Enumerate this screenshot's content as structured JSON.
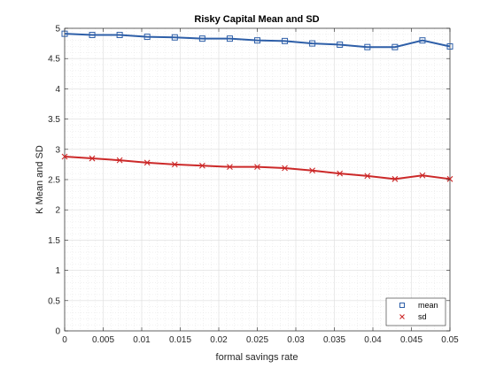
{
  "chart_data": {
    "type": "line",
    "title": "Risky Capital Mean and SD",
    "xlabel": "formal savings rate",
    "ylabel": "K Mean and SD",
    "xlim": [
      0,
      0.05
    ],
    "ylim": [
      0,
      5
    ],
    "xticks": [
      0,
      0.005,
      0.01,
      0.015,
      0.02,
      0.025,
      0.03,
      0.035,
      0.04,
      0.045,
      0.05
    ],
    "xtick_labels": [
      "0",
      "0.005",
      "0.01",
      "0.015",
      "0.02",
      "0.025",
      "0.03",
      "0.035",
      "0.04",
      "0.045",
      "0.05"
    ],
    "yticks": [
      0,
      0.5,
      1,
      1.5,
      2,
      2.5,
      3,
      3.5,
      4,
      4.5,
      5
    ],
    "ytick_labels": [
      "0",
      "0.5",
      "1",
      "1.5",
      "2",
      "2.5",
      "3",
      "3.5",
      "4",
      "4.5",
      "5"
    ],
    "grid": true,
    "minor_grid": true,
    "legend_position": "bottom-right",
    "x": [
      0,
      0.00357,
      0.00714,
      0.01071,
      0.01429,
      0.01786,
      0.02143,
      0.025,
      0.02857,
      0.03214,
      0.03571,
      0.03929,
      0.04286,
      0.04643,
      0.05
    ],
    "series": [
      {
        "name": "mean",
        "color": "#2e5fa8",
        "marker": "square",
        "values": [
          4.91,
          4.89,
          4.89,
          4.86,
          4.85,
          4.83,
          4.83,
          4.8,
          4.79,
          4.75,
          4.73,
          4.69,
          4.69,
          4.8,
          4.7
        ]
      },
      {
        "name": "sd",
        "color": "#cc2929",
        "marker": "x",
        "values": [
          2.88,
          2.85,
          2.82,
          2.78,
          2.75,
          2.73,
          2.71,
          2.71,
          2.69,
          2.65,
          2.6,
          2.56,
          2.51,
          2.57,
          2.51
        ]
      }
    ]
  }
}
